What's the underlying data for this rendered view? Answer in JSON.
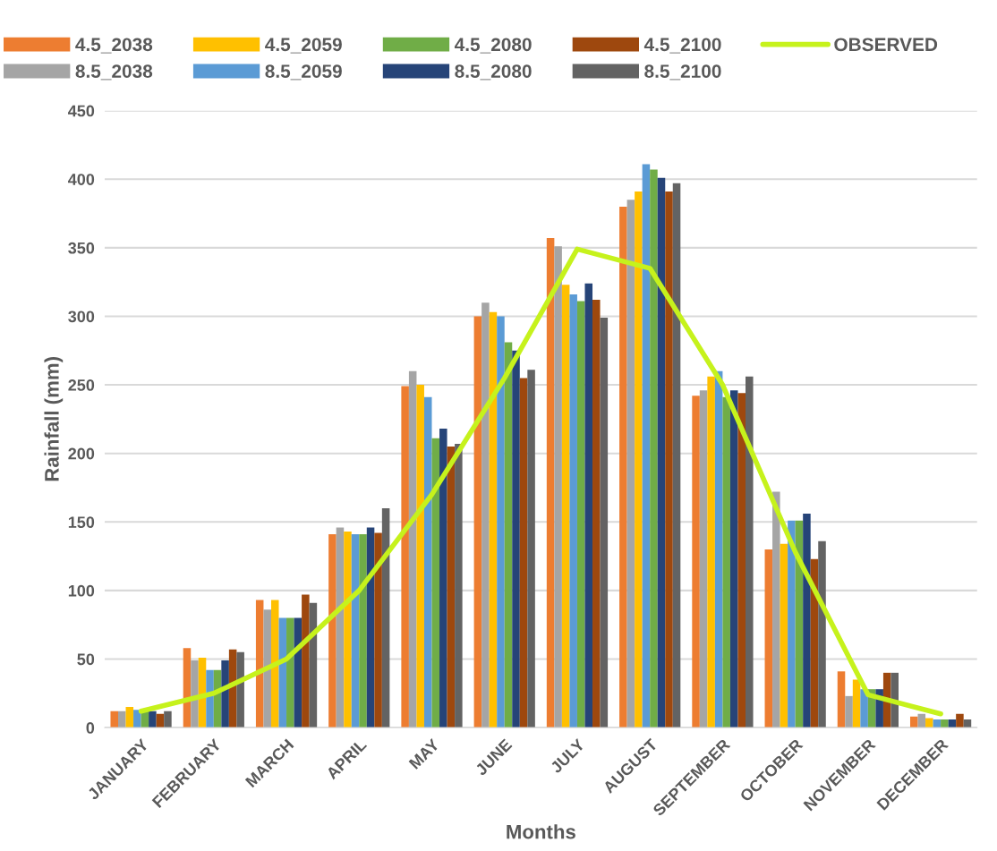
{
  "chart_data": {
    "type": "bar",
    "xlabel": "Months",
    "ylabel": "Rainfall (mm)",
    "categories": [
      "JANUARY",
      "FEBRUARY",
      "MARCH",
      "APRIL",
      "MAY",
      "JUNE",
      "JULY",
      "AUGUST",
      "SEPTEMBER",
      "OCTOBER",
      "NOVEMBER",
      "DECEMBER"
    ],
    "series": [
      {
        "name": "4.5_2038",
        "color": "#ed7d31",
        "values": [
          12,
          58,
          93,
          141,
          249,
          300,
          357,
          380,
          242,
          130,
          41,
          8
        ]
      },
      {
        "name": "8.5_2038",
        "color": "#a5a5a5",
        "values": [
          12,
          49,
          86,
          146,
          260,
          310,
          351,
          385,
          246,
          172,
          23,
          10
        ]
      },
      {
        "name": "4.5_2059",
        "color": "#ffc000",
        "values": [
          15,
          51,
          93,
          143,
          250,
          303,
          323,
          391,
          256,
          134,
          35,
          7
        ]
      },
      {
        "name": "8.5_2059",
        "color": "#5b9bd5",
        "values": [
          13,
          42,
          80,
          141,
          241,
          300,
          316,
          411,
          260,
          151,
          28,
          6
        ]
      },
      {
        "name": "4.5_2080",
        "color": "#70ad47",
        "values": [
          12,
          42,
          80,
          141,
          211,
          281,
          311,
          407,
          241,
          151,
          28,
          6
        ]
      },
      {
        "name": "8.5_2080",
        "color": "#264478",
        "values": [
          12,
          49,
          80,
          146,
          218,
          275,
          324,
          401,
          246,
          156,
          28,
          6
        ]
      },
      {
        "name": "4.5_2100",
        "color": "#9e480e",
        "values": [
          10,
          57,
          97,
          142,
          205,
          255,
          312,
          391,
          244,
          123,
          40,
          10
        ]
      },
      {
        "name": "8.5_2100",
        "color": "#636363",
        "values": [
          12,
          55,
          91,
          160,
          207,
          261,
          299,
          397,
          256,
          136,
          40,
          6
        ]
      },
      {
        "name": "OBSERVED",
        "type": "line",
        "color": "#c6f21c",
        "values": [
          12,
          25,
          50,
          100,
          170,
          255,
          349,
          335,
          250,
          128,
          24,
          10
        ]
      }
    ],
    "ylim": [
      0,
      450
    ],
    "yticks": [
      0,
      50,
      100,
      150,
      200,
      250,
      300,
      350,
      400,
      450
    ],
    "grid": "y",
    "legend": "top"
  }
}
